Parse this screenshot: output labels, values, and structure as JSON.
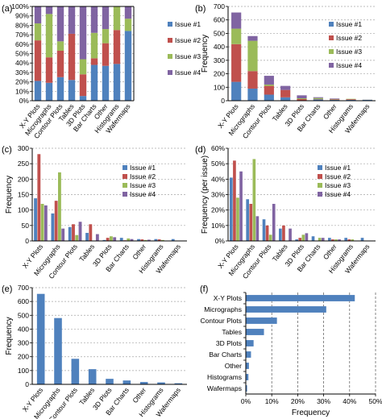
{
  "colors": {
    "issue1": "#4f81bd",
    "issue2": "#c0504d",
    "issue3": "#9bbb59",
    "issue4": "#8064a2",
    "axis": "#000000",
    "grid": "#a6a6a6"
  },
  "chart_data": [
    {
      "panel": "(a)",
      "type": "bar",
      "stacked": true,
      "categories": [
        "X-Y Plots",
        "Micrographs",
        "Contour Plots",
        "Tables",
        "3D Plots",
        "Bar Charts",
        "Other",
        "Histograms",
        "Wafermaps"
      ],
      "series": [
        {
          "name": "Issue #1",
          "values": [
            21,
            19,
            25,
            22,
            5,
            38,
            37,
            39,
            74
          ]
        },
        {
          "name": "Issue #2",
          "values": [
            43,
            27,
            28,
            49,
            23,
            7,
            24,
            36,
            0
          ]
        },
        {
          "name": "Issue #3",
          "values": [
            18,
            46,
            10,
            0,
            16,
            27,
            15,
            25,
            13
          ]
        },
        {
          "name": "Issue #4",
          "values": [
            18,
            8,
            37,
            29,
            56,
            28,
            24,
            0,
            13
          ]
        }
      ],
      "ylim": [
        0,
        100
      ],
      "ytick_labels": [
        "0%",
        "10%",
        "20%",
        "30%",
        "40%",
        "50%",
        "60%",
        "70%",
        "80%",
        "90%",
        "100%"
      ],
      "legend": "right",
      "grid": true
    },
    {
      "panel": "(b)",
      "type": "bar",
      "stacked": true,
      "categories": [
        "X-Y Plots",
        "Micrographs",
        "Contour Plots",
        "Tables",
        "3D Plots",
        "Bar Charts",
        "Other",
        "Histograms",
        "Wafermaps"
      ],
      "series": [
        {
          "name": "Issue #1",
          "values": [
            140,
            90,
            45,
            25,
            2,
            10,
            6,
            6,
            6
          ]
        },
        {
          "name": "Issue #2",
          "values": [
            280,
            130,
            65,
            55,
            10,
            2,
            4,
            5,
            0
          ]
        },
        {
          "name": "Issue #3",
          "values": [
            115,
            225,
            10,
            0,
            6,
            8,
            3,
            3,
            1
          ]
        },
        {
          "name": "Issue #4",
          "values": [
            120,
            35,
            65,
            30,
            22,
            6,
            4,
            0,
            1
          ]
        }
      ],
      "ylabel": "Frequency",
      "ylim": [
        0,
        700
      ],
      "ytick_labels": [
        "0",
        "100",
        "200",
        "300",
        "400",
        "500",
        "600",
        "700"
      ],
      "legend": "top-right",
      "grid": true
    },
    {
      "panel": "(c)",
      "type": "bar",
      "categories": [
        "X-Y Plots",
        "Micrographs",
        "Contour Plots",
        "Tables",
        "3D Plots",
        "Bar Charts",
        "Other",
        "Histograms",
        "Wafermaps"
      ],
      "series": [
        {
          "name": "Issue #1",
          "values": [
            138,
            89,
            45,
            26,
            3,
            10,
            6,
            6,
            6
          ]
        },
        {
          "name": "Issue #2",
          "values": [
            281,
            130,
            54,
            54,
            10,
            2,
            5,
            5,
            0
          ]
        },
        {
          "name": "Issue #3",
          "values": [
            120,
            222,
            19,
            0,
            15,
            8,
            3,
            3,
            1
          ]
        },
        {
          "name": "Issue #4",
          "values": [
            115,
            40,
            62,
            22,
            12,
            6,
            4,
            0,
            1
          ]
        }
      ],
      "ylabel": "Frequency",
      "ylim": [
        0,
        300
      ],
      "ytick_labels": [
        "0",
        "50",
        "100",
        "150",
        "200",
        "250",
        "300"
      ],
      "legend": "top-right",
      "grid": true
    },
    {
      "panel": "(d)",
      "type": "bar",
      "categories": [
        "X-Y Plots",
        "Micrographs",
        "Contour Plots",
        "Tables",
        "3D Plots",
        "Bar Charts",
        "Other",
        "Histograms",
        "Wafermaps"
      ],
      "series": [
        {
          "name": "Issue #1",
          "values": [
            41,
            27,
            14,
            8,
            1,
            3,
            2,
            2,
            2
          ]
        },
        {
          "name": "Issue #2",
          "values": [
            52,
            24,
            10,
            10,
            2,
            0,
            1,
            1,
            0
          ]
        },
        {
          "name": "Issue #3",
          "values": [
            28,
            53,
            4,
            0,
            4,
            2,
            1,
            1,
            0
          ]
        },
        {
          "name": "Issue #4",
          "values": [
            45,
            16,
            24,
            8,
            5,
            2,
            1,
            0,
            0
          ]
        }
      ],
      "ylabel": "Frequency (per issue)",
      "ylim": [
        0,
        60
      ],
      "ytick_labels": [
        "0%",
        "10%",
        "20%",
        "30%",
        "40%",
        "50%",
        "60%"
      ],
      "legend": "top-right",
      "grid": true
    },
    {
      "panel": "(e)",
      "type": "bar",
      "categories": [
        "X-Y Plots",
        "Micrographs",
        "Contour Plots",
        "Tables",
        "3D Plots",
        "Bar Charts",
        "Other",
        "Histograms",
        "Wafermaps"
      ],
      "values": [
        655,
        480,
        185,
        110,
        40,
        28,
        17,
        14,
        8
      ],
      "ylabel": "Frequency",
      "ylim": [
        0,
        700
      ],
      "ytick_labels": [
        "0",
        "100",
        "200",
        "300",
        "400",
        "500",
        "600",
        "700"
      ],
      "grid": true
    },
    {
      "panel": "(f)",
      "type": "bar",
      "orientation": "horizontal",
      "categories": [
        "X-Y Plots",
        "Micrographs",
        "Contour Plots",
        "Tables",
        "3D Plots",
        "Bar Charts",
        "Other",
        "Histograms",
        "Wafermaps"
      ],
      "values": [
        42,
        31,
        12,
        7,
        3,
        2,
        1.2,
        1,
        0.5
      ],
      "xlabel": "Frequency",
      "xlim": [
        0,
        50
      ],
      "xtick_labels": [
        "0%",
        "10%",
        "20%",
        "30%",
        "40%",
        "50%"
      ],
      "grid": true
    }
  ]
}
